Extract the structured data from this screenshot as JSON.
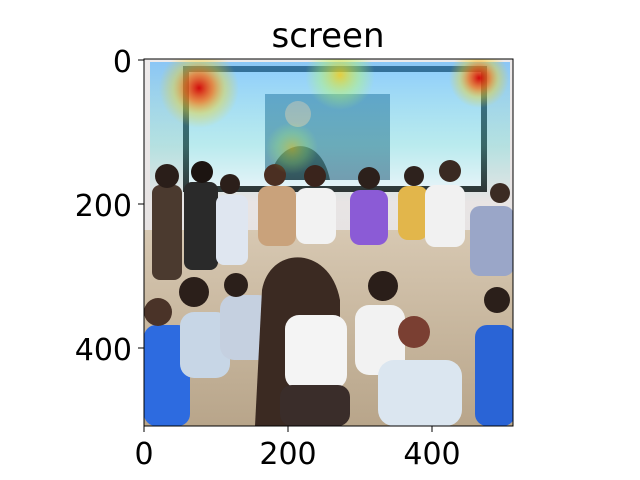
{
  "figure": {
    "title": "screen",
    "x_ticks": [
      "0",
      "200",
      "400"
    ],
    "y_ticks": [
      "0",
      "200",
      "400"
    ],
    "image_extent": {
      "x": [
        0,
        512
      ],
      "y": [
        0,
        512
      ]
    },
    "image_description_hidden": true
  },
  "heatmap": {
    "overlay": "attention heatmap over classroom photo",
    "hotspots": [
      {
        "x": 80,
        "y": 40,
        "intensity": 1.0
      },
      {
        "x": 468,
        "y": 25,
        "intensity": 0.9
      },
      {
        "x": 270,
        "y": 20,
        "intensity": 0.5
      }
    ]
  },
  "colors": {
    "axis": "#000000",
    "background": "#ffffff",
    "wall": "#e9e6e6",
    "floor": "#cdbb9f",
    "board_frame": "#2b2b2b"
  }
}
